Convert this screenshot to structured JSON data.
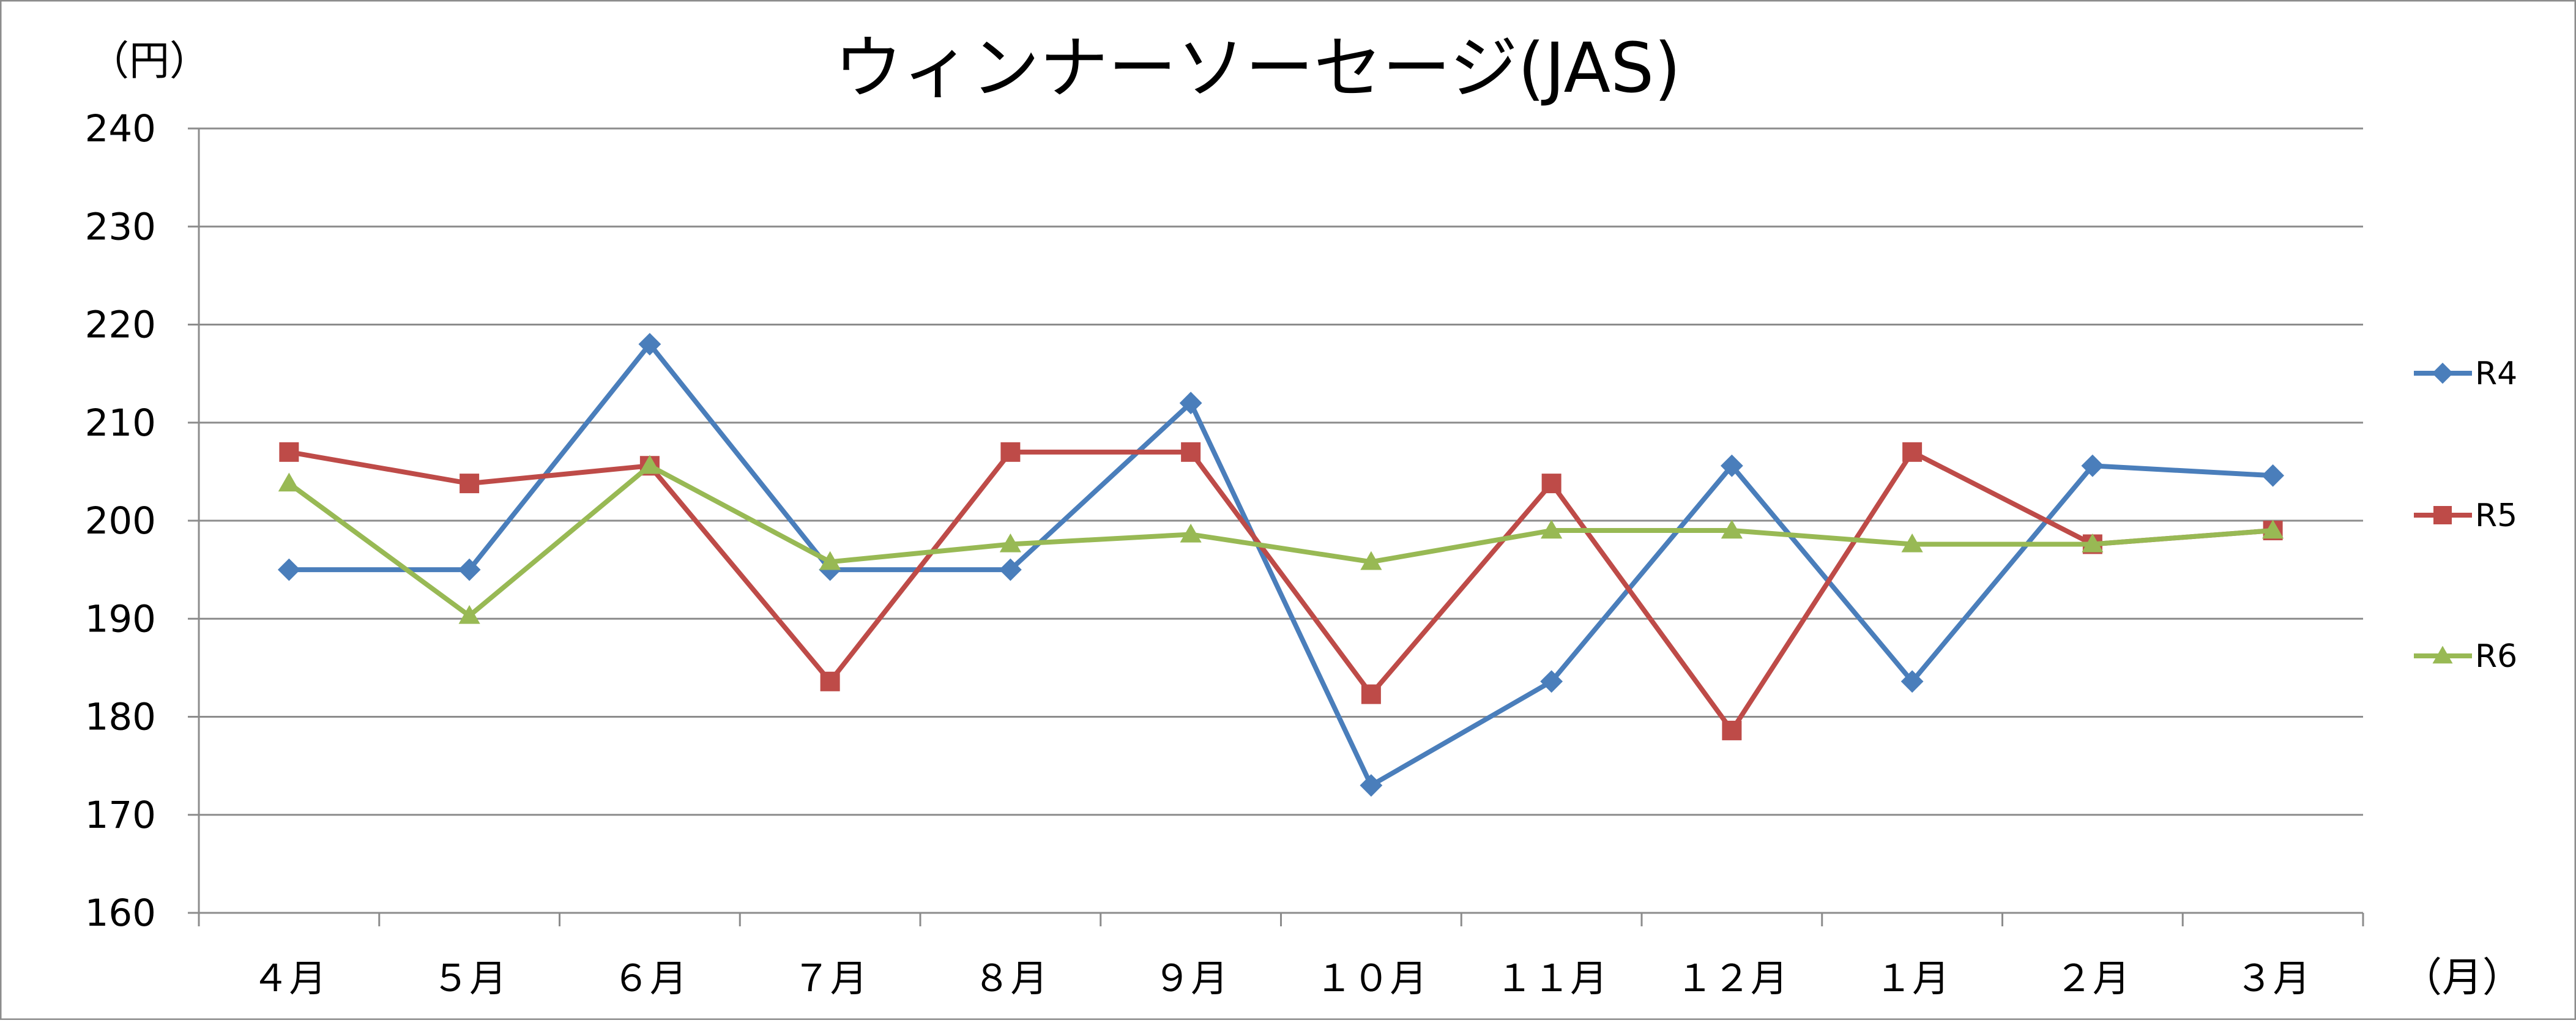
{
  "chart_data": {
    "type": "line",
    "title": "ウィンナーソーセージ(JAS)",
    "ylabel": "（円）",
    "xlabel": "（月）",
    "ylim": [
      160,
      240
    ],
    "yticks": [
      160,
      170,
      180,
      190,
      200,
      210,
      220,
      230,
      240
    ],
    "categories": [
      "４月",
      "５月",
      "６月",
      "７月",
      "８月",
      "９月",
      "１０月",
      "１１月",
      "１２月",
      "１月",
      "２月",
      "３月"
    ],
    "grid": true,
    "legend_position": "right",
    "series": [
      {
        "name": "R4",
        "color": "#4a7ebb",
        "marker": "diamond",
        "values": [
          195,
          195,
          218,
          195,
          195,
          212,
          173,
          183.6,
          205.6,
          183.6,
          205.6,
          204.6
        ]
      },
      {
        "name": "R5",
        "color": "#be4b48",
        "marker": "square",
        "values": [
          207,
          203.8,
          205.6,
          183.6,
          207,
          207,
          182.3,
          203.8,
          178.6,
          207,
          197.6,
          199
        ]
      },
      {
        "name": "R6",
        "color": "#98b954",
        "marker": "triangle",
        "values": [
          203.8,
          190.3,
          205.6,
          195.8,
          197.6,
          198.6,
          195.8,
          199,
          199,
          197.6,
          197.6,
          199
        ]
      }
    ]
  }
}
